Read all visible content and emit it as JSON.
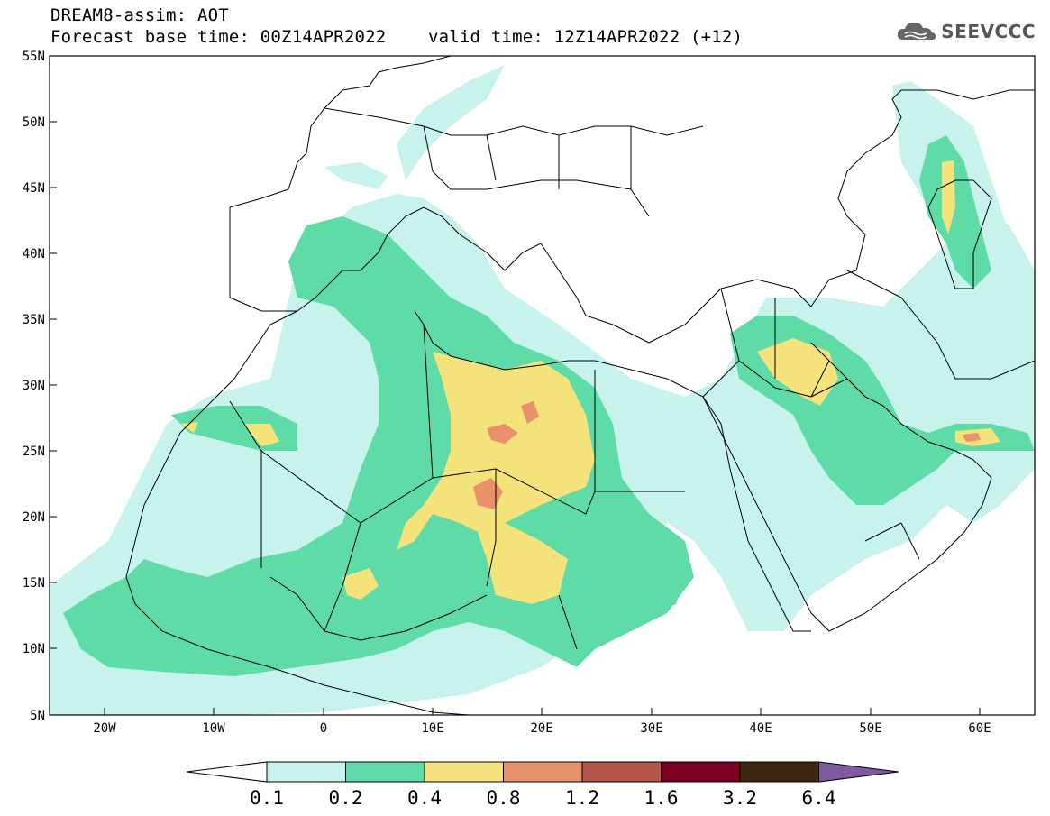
{
  "header": {
    "line1": "DREAM8-assim: AOT",
    "line2": "Forecast base time: 00Z14APR2022    valid time: 12Z14APR2022 (+12)",
    "logo": "SEEVCCC",
    "logo_icon": "cloud-icon"
  },
  "map": {
    "lat_labels": [
      "55N",
      "50N",
      "45N",
      "40N",
      "35N",
      "30N",
      "25N",
      "20N",
      "15N",
      "10N",
      "5N"
    ],
    "lon_labels": [
      "20W",
      "10W",
      "0",
      "10E",
      "20E",
      "30E",
      "40E",
      "50E",
      "60E"
    ],
    "extent": {
      "lon": [
        -25,
        65
      ],
      "lat": [
        5,
        55
      ]
    }
  },
  "colorbar": {
    "levels": [
      "0.1",
      "0.2",
      "0.4",
      "0.8",
      "1.2",
      "1.6",
      "3.2",
      "6.4"
    ],
    "colors": [
      "#ffffff",
      "#c8f2ec",
      "#5fdba8",
      "#f4e27a",
      "#e8916a",
      "#b55648",
      "#7d0022",
      "#3d2710",
      "#7f5aa0"
    ]
  }
}
